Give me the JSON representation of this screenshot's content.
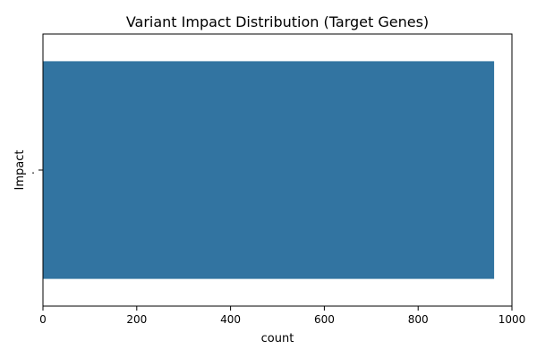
{
  "chart_data": {
    "type": "bar",
    "orientation": "horizontal",
    "title": "Variant Impact Distribution (Target Genes)",
    "xlabel": "count",
    "ylabel": "Impact",
    "categories": [
      "."
    ],
    "values": [
      962
    ],
    "xlim": [
      0,
      1000
    ],
    "xticks": [
      0,
      200,
      400,
      600,
      800,
      1000
    ],
    "grid": false,
    "legend": "none",
    "bar_color": "#3274a1"
  }
}
